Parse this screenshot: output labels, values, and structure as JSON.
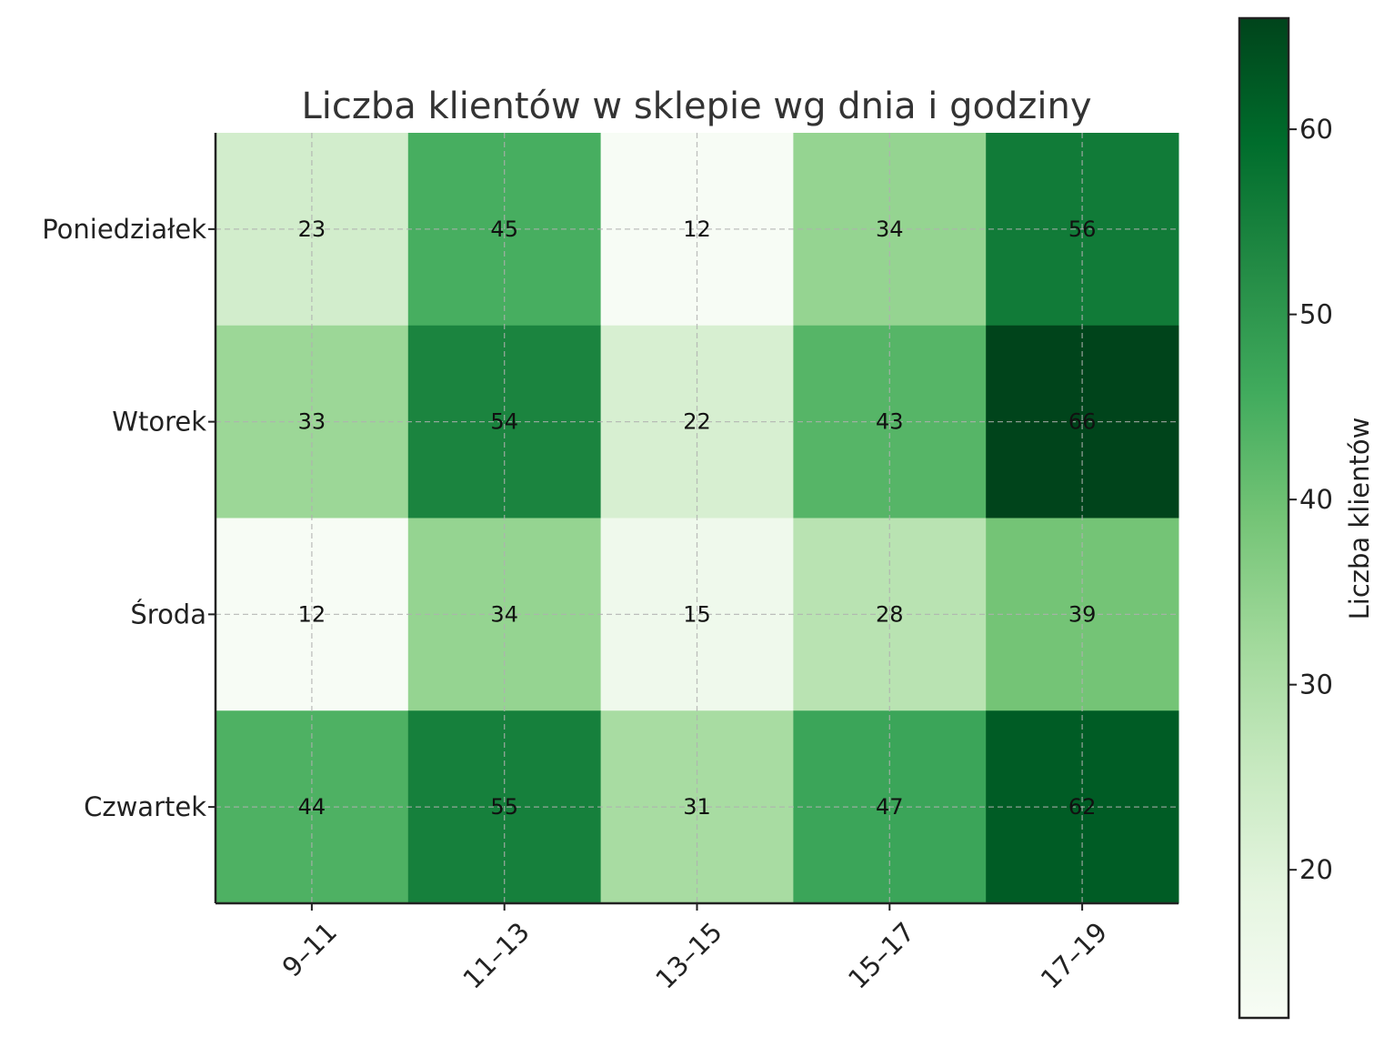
{
  "chart_data": {
    "type": "heatmap",
    "title": "Liczba klientów w sklepie wg dnia i godziny",
    "x_categories": [
      "9–11",
      "11–13",
      "13–15",
      "15–17",
      "17–19"
    ],
    "y_categories": [
      "Poniedziałek",
      "Wtorek",
      "Środa",
      "Czwartek"
    ],
    "values": [
      [
        23,
        45,
        12,
        34,
        56
      ],
      [
        33,
        54,
        22,
        43,
        66
      ],
      [
        12,
        34,
        15,
        28,
        39
      ],
      [
        44,
        55,
        31,
        47,
        62
      ]
    ],
    "colormap": "Greens",
    "color_range": [
      12,
      66
    ],
    "colorbar": {
      "label": "Liczba klientów",
      "ticks": [
        20,
        30,
        40,
        50,
        60
      ]
    },
    "grid": true,
    "cell_labels": true
  }
}
